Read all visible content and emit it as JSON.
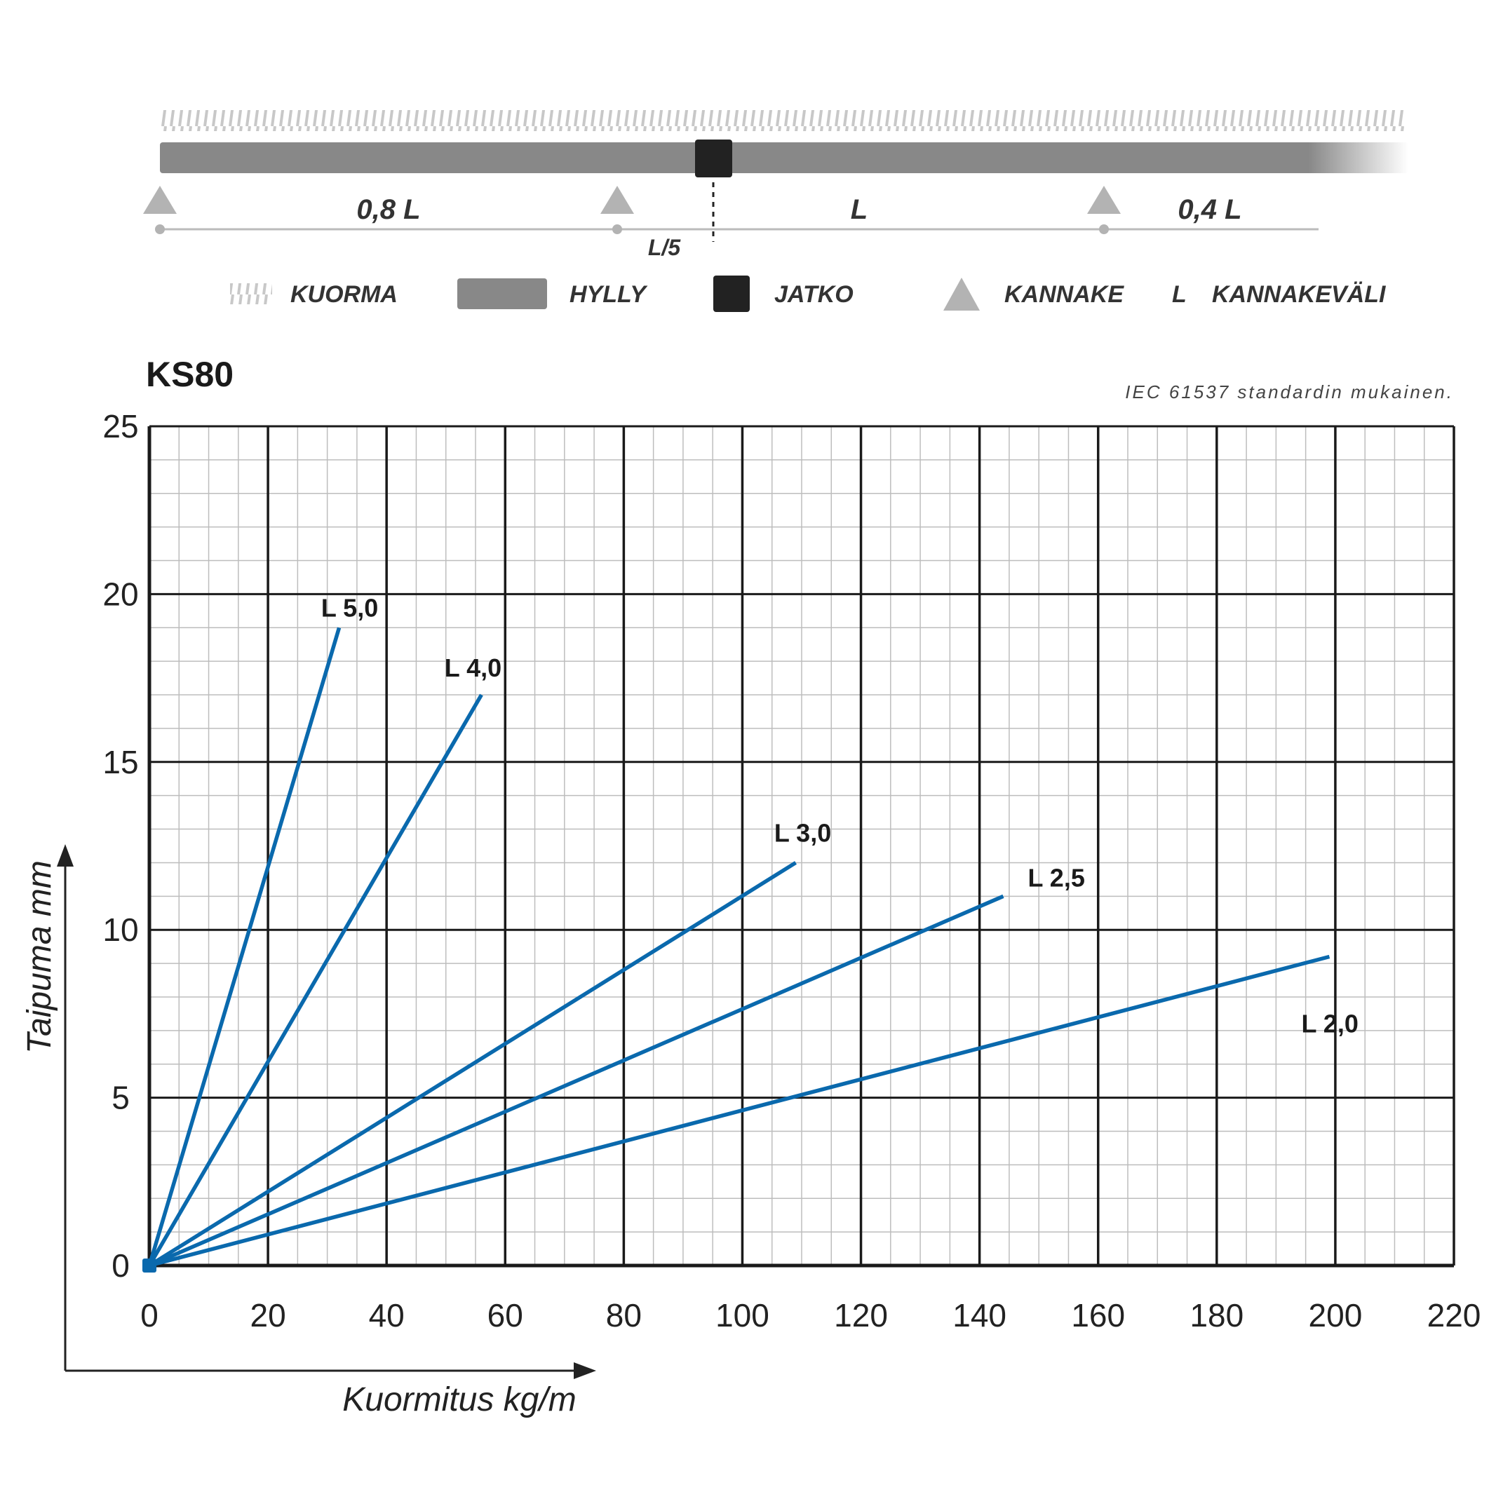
{
  "diagram": {
    "spans": [
      "0,8 L",
      "L",
      "0,4 L"
    ],
    "offset_label": "L/5"
  },
  "legend": [
    {
      "key": "load",
      "label": "KUORMA"
    },
    {
      "key": "shelf",
      "label": "HYLLY"
    },
    {
      "key": "joint",
      "label": "JATKO"
    },
    {
      "key": "support",
      "label": "KANNAKE"
    },
    {
      "key": "span",
      "symbol": "L",
      "label": "KANNAKEVÄLI"
    }
  ],
  "colors": {
    "shelf": "#888888",
    "joint": "#222222",
    "support": "#b3b3b3",
    "load_hatch": "#c8c8c8",
    "series": "#0a69ad",
    "grid_major": "#1a1a1a",
    "grid_minor": "#bdbdbd"
  },
  "chart_data": {
    "type": "line",
    "title": "KS80",
    "note": "IEC 61537 standardin mukainen.",
    "xlabel": "Kuormitus kg/m",
    "ylabel": "Taipuma mm",
    "xlim": [
      0,
      220
    ],
    "ylim": [
      0,
      25
    ],
    "xticks": [
      "0",
      "20",
      "40",
      "60",
      "80",
      "100",
      "120",
      "140",
      "160",
      "180",
      "200",
      "220"
    ],
    "yticks": [
      "0",
      "5",
      "10",
      "15",
      "20",
      "25"
    ],
    "grid": true,
    "series": [
      {
        "name": "L 5,0",
        "x": [
          0,
          32
        ],
        "y": [
          0,
          19
        ]
      },
      {
        "name": "L 4,0",
        "x": [
          0,
          56
        ],
        "y": [
          0,
          17
        ]
      },
      {
        "name": "L 3,0",
        "x": [
          0,
          109
        ],
        "y": [
          0,
          12
        ]
      },
      {
        "name": "L 2,5",
        "x": [
          0,
          144
        ],
        "y": [
          0,
          11
        ]
      },
      {
        "name": "L 2,0",
        "x": [
          0,
          199
        ],
        "y": [
          0,
          9.2
        ]
      }
    ]
  }
}
